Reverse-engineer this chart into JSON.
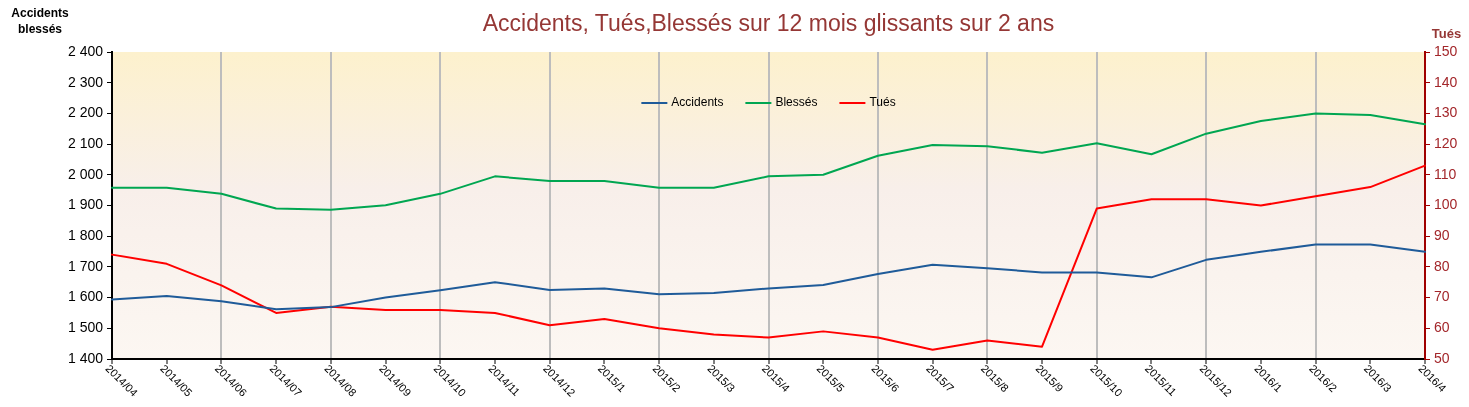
{
  "chart_data": {
    "type": "line",
    "title": "Accidents, Tués,Blessés sur 12 mois glissants sur 2 ans",
    "ylabel": "Accidents blessés",
    "y2label": "Tués",
    "categories": [
      "2014/04",
      "2014/05",
      "2014/06",
      "2014/07",
      "2014/08",
      "2014/09",
      "2014/10",
      "2014/11",
      "2014/12",
      "2015/1",
      "2015/2",
      "2015/3",
      "2015/4",
      "2015/5",
      "2015/6",
      "2015/7",
      "2015/8",
      "2015/9",
      "2015/10",
      "2015/11",
      "2015/12",
      "2016/1",
      "2016/2",
      "2016/3",
      "2016/4"
    ],
    "series": [
      {
        "name": "Accidents",
        "color": "#1f5b99",
        "values": [
          1594,
          1605,
          1588,
          1562,
          1569,
          1600,
          1624,
          1650,
          1625,
          1630,
          1611,
          1615,
          1630,
          1641,
          1677,
          1707,
          1696,
          1682,
          1682,
          1666,
          1723,
          1749,
          1773,
          1773,
          1749
        ]
      },
      {
        "name": "Blessés",
        "color": "#00a651",
        "values": [
          1958,
          1958,
          1938,
          1890,
          1886,
          1901,
          1938,
          1995,
          1980,
          1980,
          1958,
          1958,
          1995,
          2000,
          2062,
          2097,
          2093,
          2072,
          2103,
          2067,
          2134,
          2175,
          2200,
          2195,
          2165
        ]
      },
      {
        "name": "Tués",
        "color": "#ff0000",
        "axis": "y2",
        "values": [
          84,
          81,
          74,
          65,
          67,
          66,
          66,
          65,
          61,
          63,
          60,
          58,
          57,
          59,
          57,
          53,
          56,
          54,
          99,
          102,
          102,
          100,
          103,
          106,
          113
        ]
      }
    ],
    "ylim": [
      1400,
      2400
    ],
    "yticks": [
      {
        "value": 1400,
        "label": "1 400"
      },
      {
        "value": 1500,
        "label": "1 500"
      },
      {
        "value": 1600,
        "label": "1 600"
      },
      {
        "value": 1700,
        "label": "1 700"
      },
      {
        "value": 1800,
        "label": "1 800"
      },
      {
        "value": 1900,
        "label": "1 900"
      },
      {
        "value": 2000,
        "label": "2 000"
      },
      {
        "value": 2100,
        "label": "2 100"
      },
      {
        "value": 2200,
        "label": "2 200"
      },
      {
        "value": 2300,
        "label": "2 300"
      },
      {
        "value": 2400,
        "label": "2 400"
      }
    ],
    "y2lim": [
      50,
      150
    ],
    "y2ticks": [
      50,
      60,
      70,
      80,
      90,
      100,
      110,
      120,
      130,
      140,
      150
    ],
    "grid": "x",
    "legend": "top"
  }
}
